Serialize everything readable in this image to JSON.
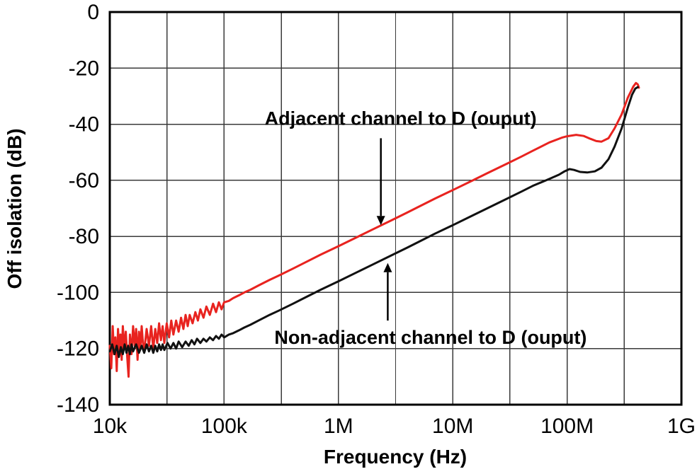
{
  "chart_data": {
    "type": "line",
    "title": "",
    "xlabel": "Frequency (Hz)",
    "ylabel": "Off isolation (dB)",
    "xscale": "log",
    "xlim": [
      10000,
      1000000000
    ],
    "ylim": [
      -140,
      0
    ],
    "grid": true,
    "x_gridlines_per_decade": 2,
    "legend_position": "none",
    "xticks": [
      [
        10000,
        "10k"
      ],
      [
        100000,
        "100k"
      ],
      [
        1000000,
        "1M"
      ],
      [
        10000000,
        "10M"
      ],
      [
        100000000,
        "100M"
      ],
      [
        1000000000,
        "1G"
      ]
    ],
    "yticks": [
      [
        0,
        "0"
      ],
      [
        -20,
        "-20"
      ],
      [
        -40,
        "-40"
      ],
      [
        -60,
        "-60"
      ],
      [
        -80,
        "-80"
      ],
      [
        -100,
        "-100"
      ],
      [
        -120,
        "-120"
      ],
      [
        -140,
        "-140"
      ]
    ],
    "series": [
      {
        "name": "Adjacent channel to D (ouput)",
        "color": "#e8231f",
        "points": [
          [
            10000,
            -119
          ],
          [
            10300,
            -127
          ],
          [
            10600,
            -112
          ],
          [
            10900,
            -122
          ],
          [
            11200,
            -116
          ],
          [
            11500,
            -128
          ],
          [
            11800,
            -113
          ],
          [
            12100,
            -121
          ],
          [
            12400,
            -115
          ],
          [
            12700,
            -124
          ],
          [
            13000,
            -112
          ],
          [
            13400,
            -120
          ],
          [
            13800,
            -114
          ],
          [
            14200,
            -123
          ],
          [
            14600,
            -130
          ],
          [
            15000,
            -115
          ],
          [
            15500,
            -122
          ],
          [
            16000,
            -112
          ],
          [
            16500,
            -119
          ],
          [
            17000,
            -113
          ],
          [
            17500,
            -124
          ],
          [
            18000,
            -114
          ],
          [
            18500,
            -120
          ],
          [
            19000,
            -112
          ],
          [
            19500,
            -118
          ],
          [
            20000,
            -121
          ],
          [
            21000,
            -113
          ],
          [
            22000,
            -119
          ],
          [
            23000,
            -112
          ],
          [
            24000,
            -120
          ],
          [
            25000,
            -113
          ],
          [
            26000,
            -118
          ],
          [
            27000,
            -111
          ],
          [
            28000,
            -117
          ],
          [
            29000,
            -112
          ],
          [
            30000,
            -118
          ],
          [
            31500,
            -111
          ],
          [
            33000,
            -116
          ],
          [
            34500,
            -110
          ],
          [
            36000,
            -115
          ],
          [
            38000,
            -110
          ],
          [
            40000,
            -114
          ],
          [
            42000,
            -109
          ],
          [
            44000,
            -113
          ],
          [
            46000,
            -108
          ],
          [
            48000,
            -112
          ],
          [
            50000,
            -108
          ],
          [
            53000,
            -111
          ],
          [
            56000,
            -107
          ],
          [
            59000,
            -110
          ],
          [
            62000,
            -106
          ],
          [
            66000,
            -109
          ],
          [
            70000,
            -105
          ],
          [
            75000,
            -108
          ],
          [
            80000,
            -104
          ],
          [
            85000,
            -107
          ],
          [
            90000,
            -103.5
          ],
          [
            95000,
            -106
          ],
          [
            100000,
            -103.5
          ],
          [
            110000,
            -103
          ],
          [
            120000,
            -102
          ],
          [
            135000,
            -101
          ],
          [
            150000,
            -100
          ],
          [
            170000,
            -99
          ],
          [
            200000,
            -97.5
          ],
          [
            250000,
            -95.5
          ],
          [
            300000,
            -94
          ],
          [
            400000,
            -91.5
          ],
          [
            500000,
            -89.5
          ],
          [
            700000,
            -86.5
          ],
          [
            1000000,
            -83.5
          ],
          [
            1500000,
            -80
          ],
          [
            2000000,
            -77.5
          ],
          [
            3000000,
            -74
          ],
          [
            4000000,
            -71.5
          ],
          [
            5000000,
            -69.5
          ],
          [
            7000000,
            -66.5
          ],
          [
            10000000,
            -63.5
          ],
          [
            15000000,
            -60
          ],
          [
            20000000,
            -57.5
          ],
          [
            30000000,
            -54
          ],
          [
            40000000,
            -51.5
          ],
          [
            50000000,
            -49.5
          ],
          [
            70000000,
            -46.5
          ],
          [
            90000000,
            -44.8
          ],
          [
            100000000,
            -44.3
          ],
          [
            120000000,
            -43.8
          ],
          [
            140000000,
            -44.2
          ],
          [
            160000000,
            -45.2
          ],
          [
            180000000,
            -46
          ],
          [
            200000000,
            -46.2
          ],
          [
            230000000,
            -45
          ],
          [
            260000000,
            -41.5
          ],
          [
            300000000,
            -36.5
          ],
          [
            340000000,
            -30.5
          ],
          [
            380000000,
            -26.5
          ],
          [
            400000000,
            -25.3
          ],
          [
            415000000,
            -25.8
          ],
          [
            425000000,
            -27
          ]
        ]
      },
      {
        "name": "Non-adjacent channel to D (ouput)",
        "color": "#111111",
        "points": [
          [
            10000,
            -121
          ],
          [
            10500,
            -118.5
          ],
          [
            11000,
            -122
          ],
          [
            11500,
            -119
          ],
          [
            12000,
            -123
          ],
          [
            12500,
            -119.5
          ],
          [
            13000,
            -122
          ],
          [
            13500,
            -118.5
          ],
          [
            14000,
            -121.5
          ],
          [
            14500,
            -119
          ],
          [
            15000,
            -122
          ],
          [
            15500,
            -118.5
          ],
          [
            16000,
            -121
          ],
          [
            17000,
            -118.5
          ],
          [
            18000,
            -121.5
          ],
          [
            19000,
            -119
          ],
          [
            20000,
            -121.5
          ],
          [
            21000,
            -118.5
          ],
          [
            22000,
            -121
          ],
          [
            23000,
            -119
          ],
          [
            24000,
            -121.5
          ],
          [
            25000,
            -119
          ],
          [
            26000,
            -121
          ],
          [
            27000,
            -118.5
          ],
          [
            28000,
            -120.5
          ],
          [
            29000,
            -118.5
          ],
          [
            30000,
            -120.5
          ],
          [
            32000,
            -118
          ],
          [
            34000,
            -120
          ],
          [
            36000,
            -118
          ],
          [
            38000,
            -120
          ],
          [
            40000,
            -117.5
          ],
          [
            43000,
            -119.5
          ],
          [
            46000,
            -117.5
          ],
          [
            49000,
            -119
          ],
          [
            52000,
            -117
          ],
          [
            55000,
            -118.5
          ],
          [
            58000,
            -116.5
          ],
          [
            62000,
            -118
          ],
          [
            66000,
            -116.5
          ],
          [
            70000,
            -117.5
          ],
          [
            75000,
            -116
          ],
          [
            80000,
            -117
          ],
          [
            85000,
            -115.5
          ],
          [
            90000,
            -116.5
          ],
          [
            95000,
            -115
          ],
          [
            100000,
            -116
          ],
          [
            110000,
            -115
          ],
          [
            120000,
            -114.5
          ],
          [
            135000,
            -113.5
          ],
          [
            150000,
            -112.5
          ],
          [
            170000,
            -111.5
          ],
          [
            200000,
            -110
          ],
          [
            250000,
            -108
          ],
          [
            300000,
            -106.5
          ],
          [
            400000,
            -104
          ],
          [
            500000,
            -102
          ],
          [
            700000,
            -99
          ],
          [
            1000000,
            -96
          ],
          [
            1500000,
            -92.5
          ],
          [
            2000000,
            -90
          ],
          [
            3000000,
            -86.5
          ],
          [
            4000000,
            -84
          ],
          [
            5000000,
            -82
          ],
          [
            7000000,
            -79
          ],
          [
            10000000,
            -76
          ],
          [
            15000000,
            -72.5
          ],
          [
            20000000,
            -70
          ],
          [
            30000000,
            -66.5
          ],
          [
            40000000,
            -64
          ],
          [
            50000000,
            -62
          ],
          [
            70000000,
            -59.5
          ],
          [
            85000000,
            -58
          ],
          [
            95000000,
            -56.8
          ],
          [
            105000000,
            -56
          ],
          [
            115000000,
            -56.3
          ],
          [
            130000000,
            -57
          ],
          [
            150000000,
            -57.2
          ],
          [
            175000000,
            -56.8
          ],
          [
            200000000,
            -55.5
          ],
          [
            230000000,
            -52.5
          ],
          [
            260000000,
            -48
          ],
          [
            300000000,
            -41.5
          ],
          [
            340000000,
            -34
          ],
          [
            370000000,
            -29.5
          ],
          [
            395000000,
            -27.3
          ],
          [
            415000000,
            -26.8
          ]
        ]
      }
    ],
    "annotations": [
      {
        "text": "Adjacent channel to D (ouput)",
        "label_x": 3500000,
        "label_y": -38,
        "arrow_x": 2350000,
        "arrow_from": -45,
        "arrow_to": -76,
        "dir": "down",
        "color": "#000000"
      },
      {
        "text": "Non-adjacent channel to D (ouput)",
        "label_x": 6400000,
        "label_y": -116,
        "arrow_x": 2700000,
        "arrow_from": -110,
        "arrow_to": -89.5,
        "dir": "up",
        "color": "#000000"
      }
    ]
  },
  "style": {
    "grid_color": "#3a3a3a",
    "border_color": "#000000",
    "background": "#ffffff"
  }
}
